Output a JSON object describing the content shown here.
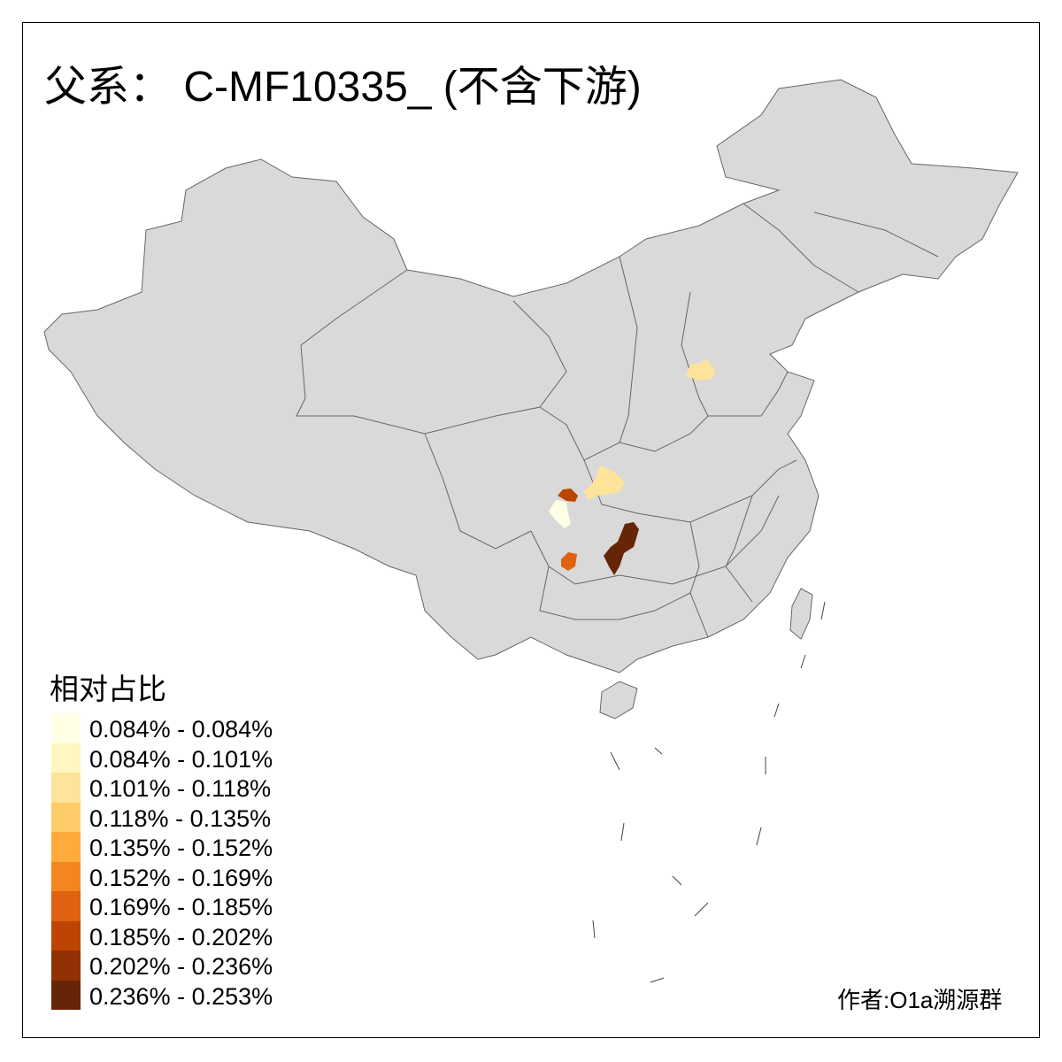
{
  "title": "父系： C-MF10335_ (不含下游)",
  "credit": "作者:O1a溯源群",
  "colors": {
    "base_fill": "#D9D9D9",
    "border": "#666666"
  },
  "legend": {
    "title": "相对占比",
    "items": [
      {
        "label": "0.084% - 0.084%",
        "color": "#FFFFE5"
      },
      {
        "label": "0.084% - 0.101%",
        "color": "#FFF6C1"
      },
      {
        "label": "0.101% - 0.118%",
        "color": "#FEE49A"
      },
      {
        "label": "0.118% - 0.135%",
        "color": "#FECD69"
      },
      {
        "label": "0.135% - 0.152%",
        "color": "#FEAA3C"
      },
      {
        "label": "0.152% - 0.169%",
        "color": "#F3861F"
      },
      {
        "label": "0.169% - 0.185%",
        "color": "#DE620F"
      },
      {
        "label": "0.185% - 0.202%",
        "color": "#BE4404"
      },
      {
        "label": "0.202% - 0.236%",
        "color": "#923104"
      },
      {
        "label": "0.236% - 0.253%",
        "color": "#662506"
      }
    ]
  },
  "highlighted_regions": [
    {
      "class": 2,
      "area": "north-china"
    },
    {
      "class": 2,
      "area": "central-west"
    },
    {
      "class": 7,
      "area": "southwest-a"
    },
    {
      "class": 0,
      "area": "southwest-b"
    },
    {
      "class": 9,
      "area": "south-central"
    },
    {
      "class": 6,
      "area": "southwest-c"
    }
  ]
}
